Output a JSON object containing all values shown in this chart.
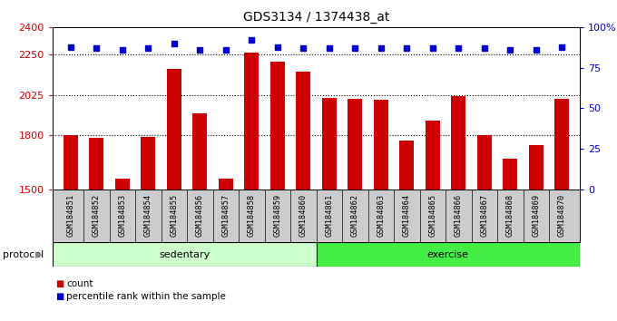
{
  "title": "GDS3134 / 1374438_at",
  "samples": [
    "GSM184851",
    "GSM184852",
    "GSM184853",
    "GSM184854",
    "GSM184855",
    "GSM184856",
    "GSM184857",
    "GSM184858",
    "GSM184859",
    "GSM184860",
    "GSM184861",
    "GSM184862",
    "GSM184863",
    "GSM184864",
    "GSM184865",
    "GSM184866",
    "GSM184867",
    "GSM184868",
    "GSM184869",
    "GSM184870"
  ],
  "bar_values": [
    1800,
    1785,
    1560,
    1790,
    2170,
    1920,
    1560,
    2260,
    2210,
    2155,
    2010,
    2005,
    2000,
    1770,
    1880,
    2020,
    1800,
    1670,
    1745,
    2005
  ],
  "percentile_values": [
    88,
    87,
    86,
    87,
    90,
    86,
    86,
    92,
    88,
    87,
    87,
    87,
    87,
    87,
    87,
    87,
    87,
    86,
    86,
    88
  ],
  "bar_color": "#cc0000",
  "dot_color": "#0000cc",
  "ylim_left": [
    1500,
    2400
  ],
  "ylim_right": [
    0,
    100
  ],
  "bar_bottom": 1500,
  "yticks_left": [
    1500,
    1800,
    2025,
    2250,
    2400
  ],
  "ytick_labels_left": [
    "1500",
    "1800",
    "2025",
    "2250",
    "2400"
  ],
  "yticks_right": [
    0,
    25,
    50,
    75,
    100
  ],
  "ytick_labels_right": [
    "0",
    "25",
    "50",
    "75",
    "100%"
  ],
  "hlines": [
    1800,
    2025,
    2250
  ],
  "protocol_groups": [
    {
      "label": "sedentary",
      "start": 0,
      "end": 10,
      "color": "#ccffcc"
    },
    {
      "label": "exercise",
      "start": 10,
      "end": 20,
      "color": "#44ee44"
    }
  ],
  "protocol_label": "protocol",
  "legend_items": [
    {
      "color": "#cc0000",
      "label": "count"
    },
    {
      "color": "#0000cc",
      "label": "percentile rank within the sample"
    }
  ],
  "fig_bg": "#ffffff",
  "plot_bg": "#ffffff",
  "xlabel_bg": "#cccccc"
}
